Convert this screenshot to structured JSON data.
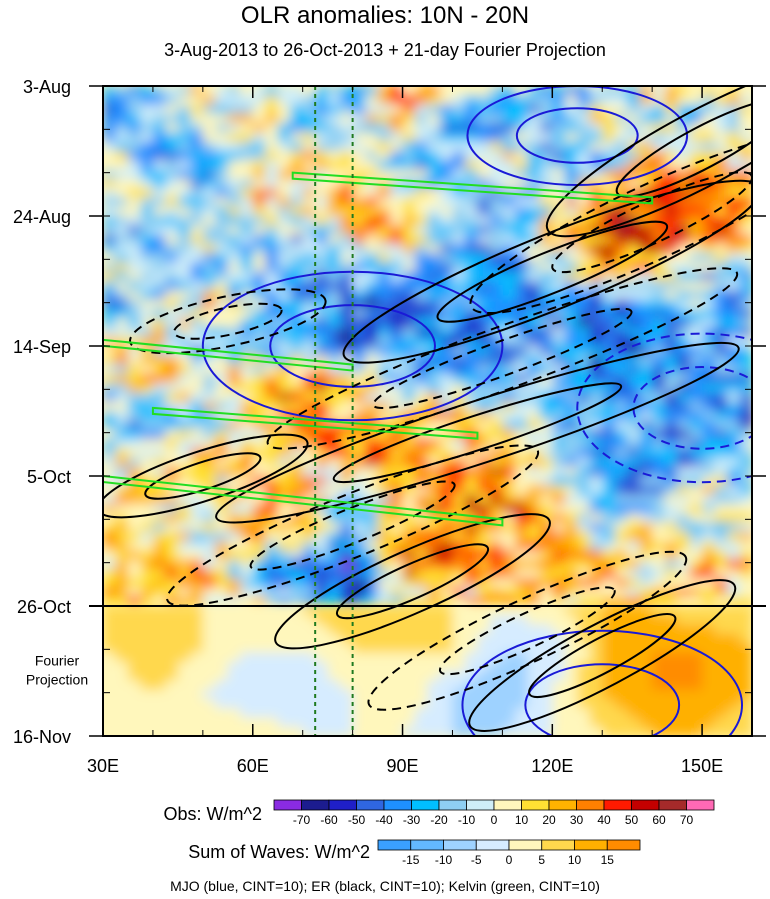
{
  "chart_data": {
    "type": "heatmap",
    "title": "OLR anomalies: 10N - 20N",
    "subtitle": "3-Aug-2013 to 26-Oct-2013 + 21-day Fourier Projection",
    "x_axis": {
      "label": "",
      "range_deg_e": [
        30,
        160
      ],
      "ticks": [
        {
          "value": 30,
          "label": "30E"
        },
        {
          "value": 60,
          "label": "60E"
        },
        {
          "value": 90,
          "label": "90E"
        },
        {
          "value": 120,
          "label": "120E"
        },
        {
          "value": 150,
          "label": "150E"
        }
      ]
    },
    "y_axis": {
      "label": "",
      "range_days": [
        0,
        105
      ],
      "ticks": [
        {
          "day": 0,
          "label": "3-Aug"
        },
        {
          "day": 21,
          "label": "24-Aug"
        },
        {
          "day": 42,
          "label": "14-Sep"
        },
        {
          "day": 63,
          "label": "5-Oct"
        },
        {
          "day": 84,
          "label": "26-Oct"
        },
        {
          "day": 105,
          "label": "16-Nov"
        }
      ]
    },
    "projection": {
      "start_day": 84,
      "label_line1": "Fourier",
      "label_line2": "Projection"
    },
    "reference_lines_deg_e": [
      72.5,
      80
    ],
    "obs_colorbar": {
      "label": "Obs: W/m^2",
      "levels": [
        -70,
        -60,
        -50,
        -40,
        -30,
        -20,
        -10,
        0,
        10,
        20,
        30,
        40,
        50,
        60,
        70
      ],
      "colors": [
        "#8a2be2",
        "#1c1c8f",
        "#1f1fc8",
        "#2f66e0",
        "#1e90ff",
        "#00bfff",
        "#8ecff3",
        "#cfeef8",
        "#fff7bc",
        "#ffe033",
        "#ffb300",
        "#ff8000",
        "#ff1a00",
        "#c40000",
        "#a52a2a",
        "#ff69b4"
      ]
    },
    "waves_colorbar": {
      "label": "Sum of Waves: W/m^2",
      "levels": [
        -15,
        -10,
        -5,
        0,
        5,
        10,
        15
      ],
      "colors": [
        "#3aa0ff",
        "#63b8ff",
        "#9ed2ff",
        "#d6ecff",
        "#fff7bc",
        "#ffd84d",
        "#ffb000",
        "#ff8c00"
      ]
    },
    "footnote": "MJO (blue, CINT=10); ER (black, CINT=10); Kelvin (green, CINT=10)",
    "wave_contours": {
      "ER_black": [
        {
          "lon": 150,
          "day": 10,
          "dlon": 35,
          "dday": 6,
          "angle": -28,
          "dashed": false
        },
        {
          "lon": 140,
          "day": 22,
          "dlon": 40,
          "dday": 6,
          "angle": -25,
          "dashed": true
        },
        {
          "lon": 120,
          "day": 30,
          "dlon": 45,
          "dday": 6,
          "angle": -22,
          "dashed": false
        },
        {
          "lon": 110,
          "day": 44,
          "dlon": 50,
          "dday": 5,
          "angle": -20,
          "dashed": true
        },
        {
          "lon": 105,
          "day": 56,
          "dlon": 55,
          "dday": 5,
          "angle": -18,
          "dashed": false
        },
        {
          "lon": 80,
          "day": 71,
          "dlon": 40,
          "dday": 5,
          "angle": -22,
          "dashed": true
        },
        {
          "lon": 92,
          "day": 80,
          "dlon": 30,
          "dday": 5,
          "angle": -24,
          "dashed": false
        },
        {
          "lon": 115,
          "day": 88,
          "dlon": 35,
          "dday": 5,
          "angle": -25,
          "dashed": true
        },
        {
          "lon": 130,
          "day": 92,
          "dlon": 30,
          "dday": 5,
          "angle": -28,
          "dashed": false
        },
        {
          "lon": 50,
          "day": 63,
          "dlon": 22,
          "dday": 4,
          "angle": -18,
          "dashed": false
        },
        {
          "lon": 55,
          "day": 38,
          "dlon": 20,
          "dday": 4,
          "angle": -12,
          "dashed": true
        }
      ],
      "MJO_blue": [
        {
          "lon": 125,
          "day": 8,
          "dlon": 22,
          "dday": 8,
          "angle": 0,
          "dashed": false
        },
        {
          "lon": 80,
          "day": 42,
          "dlon": 30,
          "dday": 12,
          "angle": 0,
          "dashed": false
        },
        {
          "lon": 150,
          "day": 52,
          "dlon": 25,
          "dday": 12,
          "angle": 0,
          "dashed": true
        },
        {
          "lon": 130,
          "day": 100,
          "dlon": 28,
          "dday": 12,
          "angle": 0,
          "dashed": false
        }
      ],
      "Kelvin_green": [
        {
          "lon0": 68,
          "day0": 14,
          "lon1": 140,
          "day1": 18
        },
        {
          "lon0": 30,
          "day0": 41,
          "lon1": 80,
          "day1": 45
        },
        {
          "lon0": 40,
          "day0": 52,
          "lon1": 105,
          "day1": 56
        },
        {
          "lon0": 30,
          "day0": 63,
          "lon1": 110,
          "day1": 70
        }
      ]
    },
    "obs_field_description_values": {
      "note": "anomaly field sampled on a coarse grid (W/m^2), rows = days 0..84 step 6, cols = lon 30..160 step 10",
      "lons": [
        30,
        40,
        50,
        60,
        70,
        80,
        90,
        100,
        110,
        120,
        130,
        140,
        150,
        160
      ],
      "days": [
        0,
        6,
        12,
        18,
        24,
        30,
        36,
        42,
        48,
        54,
        60,
        66,
        72,
        78,
        84
      ],
      "grid": [
        [
          -20,
          -10,
          10,
          -20,
          10,
          -30,
          30,
          20,
          -10,
          -30,
          -20,
          10,
          20,
          -10
        ],
        [
          -30,
          -20,
          -10,
          20,
          -30,
          -10,
          20,
          -40,
          -30,
          -20,
          10,
          -10,
          -20,
          20
        ],
        [
          10,
          -30,
          -20,
          -10,
          20,
          10,
          -30,
          -20,
          20,
          -30,
          -20,
          30,
          20,
          10
        ],
        [
          -10,
          10,
          -30,
          20,
          10,
          30,
          20,
          -20,
          -30,
          -10,
          40,
          40,
          50,
          30
        ],
        [
          -20,
          -30,
          10,
          -10,
          -20,
          10,
          30,
          -30,
          -20,
          20,
          40,
          50,
          40,
          20
        ],
        [
          10,
          -20,
          -30,
          -20,
          -30,
          -20,
          -10,
          -30,
          -40,
          -20,
          30,
          20,
          -20,
          -30
        ],
        [
          -30,
          -10,
          20,
          -10,
          -20,
          -40,
          -50,
          -30,
          -20,
          -40,
          -50,
          -30,
          -20,
          -40
        ],
        [
          20,
          10,
          -30,
          -20,
          -30,
          -40,
          -30,
          -40,
          -30,
          -20,
          -50,
          -40,
          -30,
          -20
        ],
        [
          -10,
          20,
          10,
          30,
          40,
          30,
          -20,
          -10,
          -30,
          -20,
          -40,
          -30,
          -40,
          -20
        ],
        [
          -20,
          -30,
          -10,
          10,
          30,
          20,
          30,
          20,
          10,
          -20,
          -30,
          -20,
          -30,
          -40
        ],
        [
          -10,
          10,
          20,
          20,
          10,
          40,
          30,
          20,
          30,
          -20,
          -30,
          -40,
          -30,
          -20
        ],
        [
          10,
          20,
          -10,
          20,
          30,
          -20,
          20,
          30,
          40,
          20,
          -20,
          -40,
          20,
          -30
        ],
        [
          20,
          10,
          -10,
          30,
          20,
          -30,
          30,
          40,
          20,
          30,
          -20,
          30,
          -20,
          20
        ],
        [
          10,
          20,
          30,
          -20,
          -40,
          -60,
          40,
          30,
          30,
          20,
          30,
          -20,
          30,
          20
        ],
        [
          20,
          30,
          20,
          10,
          -30,
          -50,
          -10,
          20,
          10,
          10,
          20,
          20,
          10,
          10
        ]
      ]
    },
    "projection_field_values": {
      "lons": [
        30,
        40,
        50,
        60,
        70,
        80,
        90,
        100,
        110,
        120,
        130,
        140,
        150,
        160
      ],
      "days": [
        84,
        91,
        98,
        105
      ],
      "grid": [
        [
          10,
          10,
          5,
          5,
          5,
          10,
          10,
          5,
          0,
          5,
          10,
          10,
          5,
          5
        ],
        [
          5,
          10,
          5,
          0,
          0,
          5,
          5,
          5,
          -5,
          -5,
          10,
          15,
          15,
          10
        ],
        [
          0,
          5,
          0,
          -5,
          -5,
          0,
          5,
          -5,
          -10,
          0,
          10,
          15,
          15,
          10
        ],
        [
          0,
          0,
          5,
          5,
          0,
          0,
          0,
          -5,
          -5,
          0,
          5,
          10,
          10,
          5
        ]
      ]
    }
  }
}
